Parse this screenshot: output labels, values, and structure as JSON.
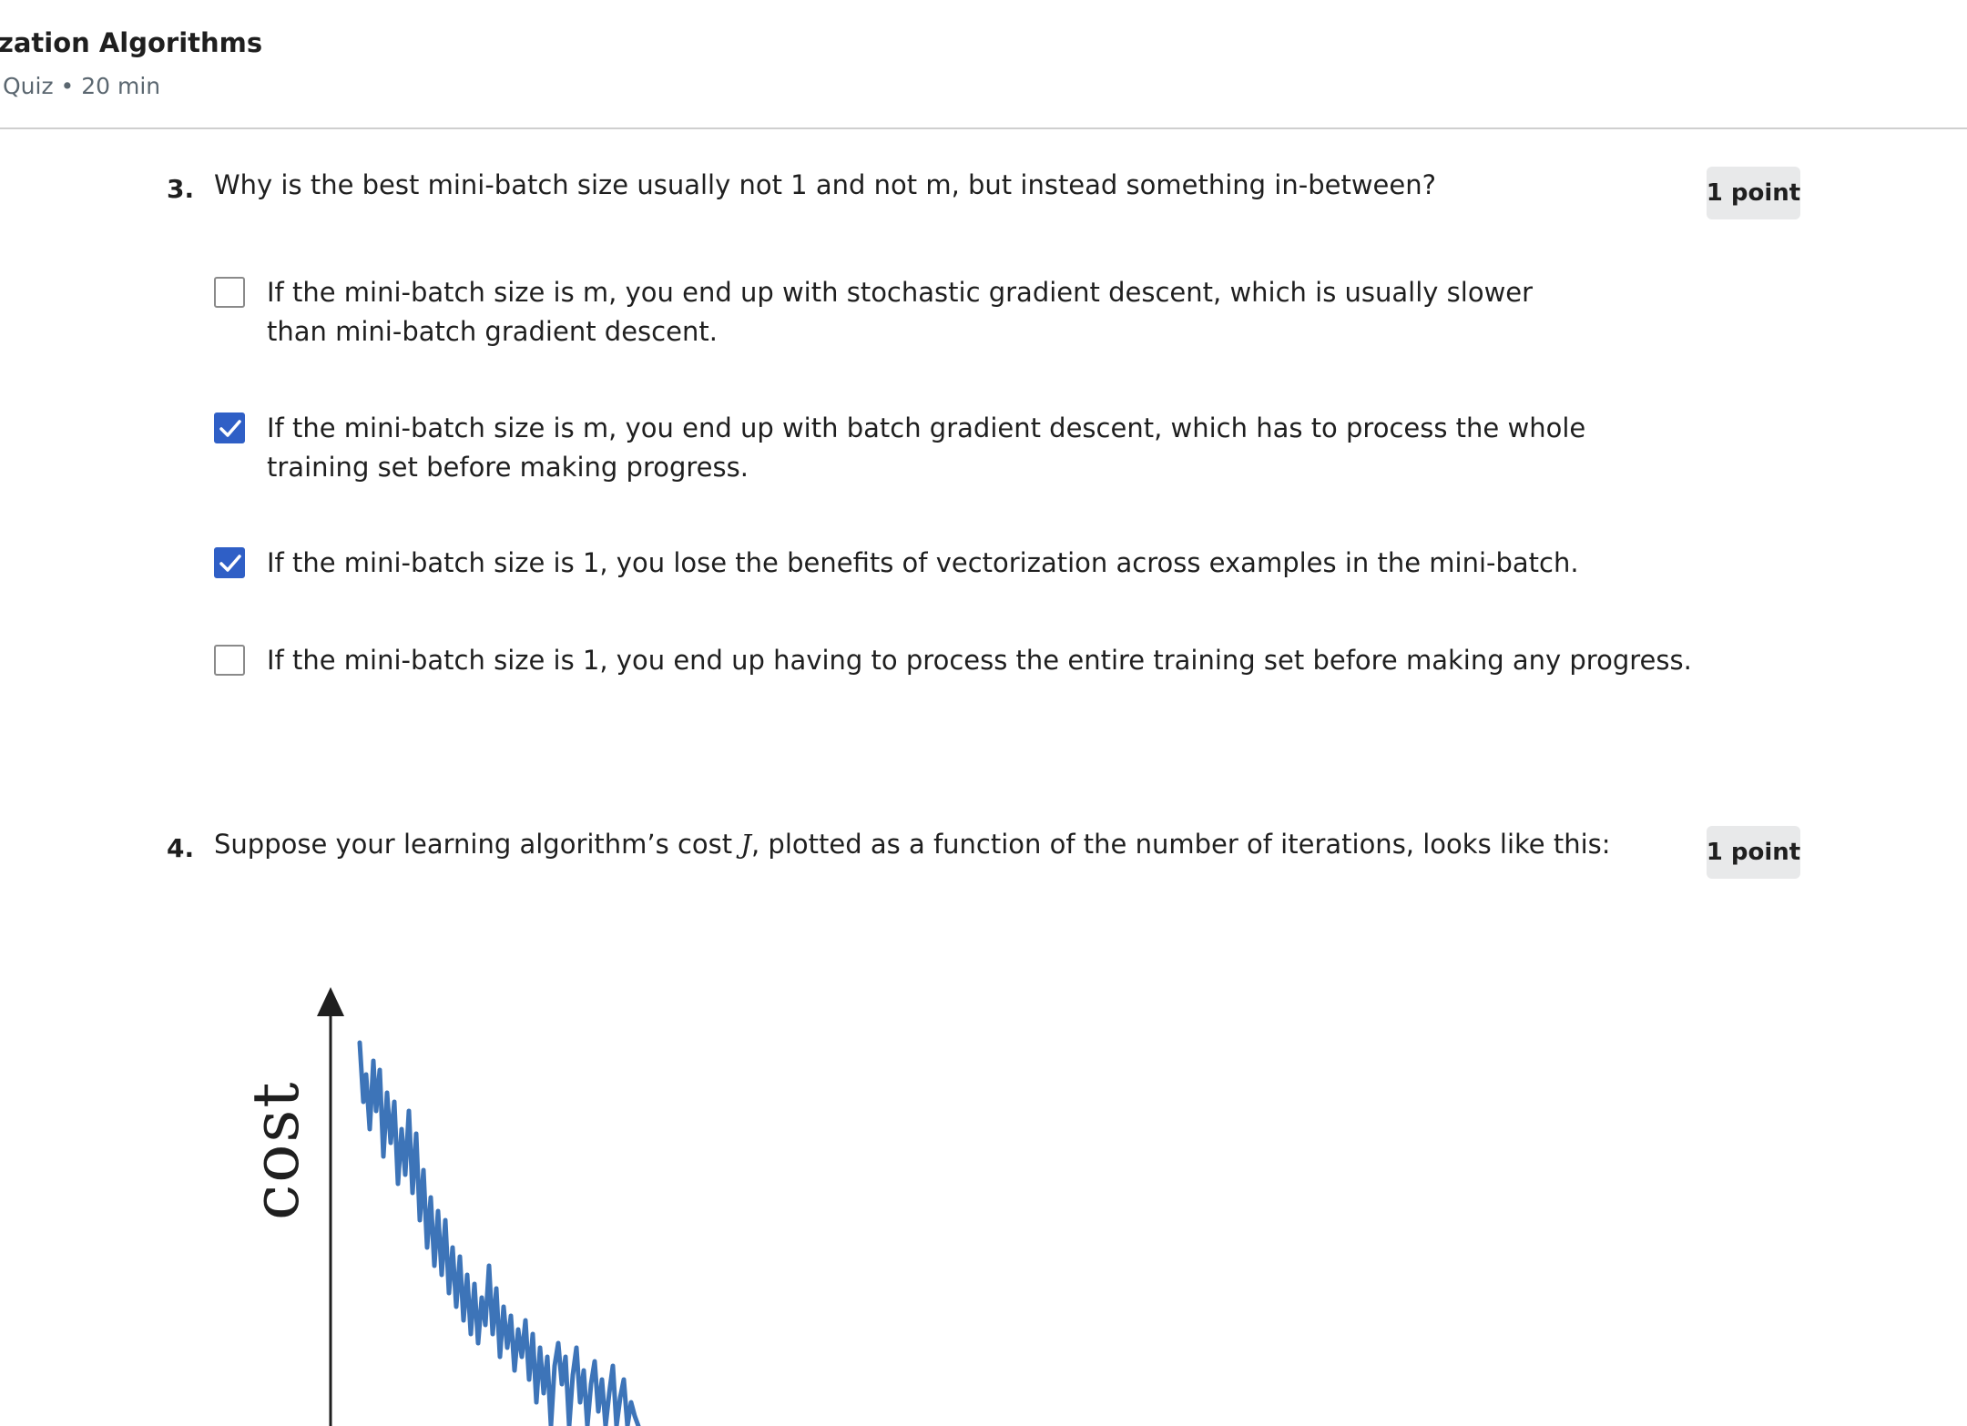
{
  "header": {
    "title": "ization Algorithms",
    "meta": "Quiz • 20 min"
  },
  "questions": [
    {
      "number": "3.",
      "text": "Why is the best mini-batch size usually not 1 and not m, but instead something in-between?",
      "points": "1 point",
      "options": [
        {
          "text": "If the mini-batch size is m, you end up with stochastic gradient descent, which is usually slower than mini-batch gradient descent.",
          "checked": false
        },
        {
          "text": "If the mini-batch size is m, you end up with batch gradient descent, which has to process the whole training set before making progress.",
          "checked": true
        },
        {
          "text": "If the mini-batch size is 1, you lose the benefits of vectorization across examples in the mini-batch.",
          "checked": true
        },
        {
          "text": "If the mini-batch size is 1, you end up having to process the entire training set before making any progress.",
          "checked": false
        }
      ]
    },
    {
      "number": "4.",
      "text_before": "Suppose your learning algorithm’s cost ",
      "text_var": "J",
      "text_after": ", plotted as a function of the number of iterations, looks like this:",
      "points": "1 point"
    }
  ],
  "chart": {
    "ylabel": "cost",
    "line_color": "#3d74b8",
    "axis_color": "#1f1f1f"
  }
}
